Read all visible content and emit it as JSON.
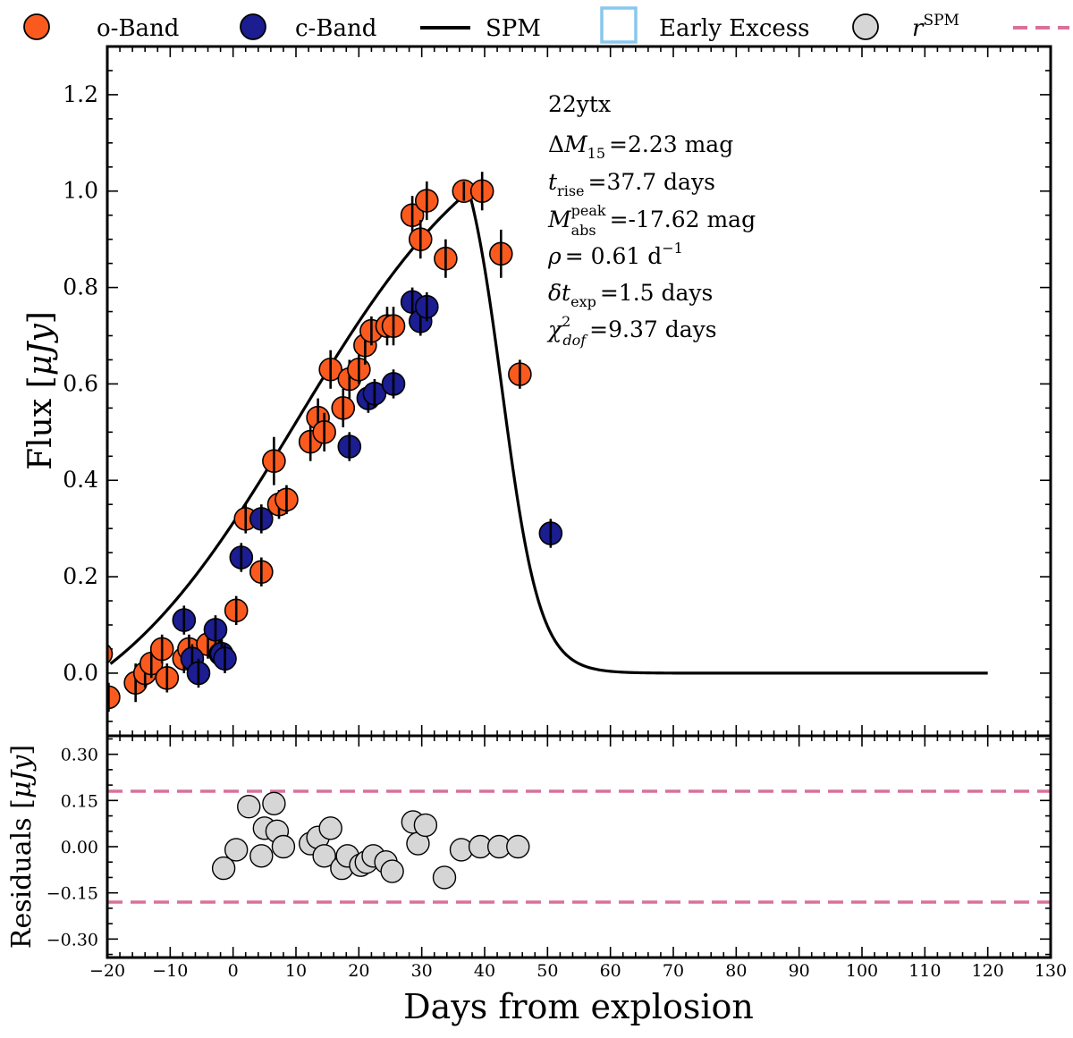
{
  "legend": {
    "items": [
      {
        "label": "o-Band",
        "kind": "marker",
        "color": "#fb5a1e"
      },
      {
        "label": "c-Band",
        "kind": "marker",
        "color": "#1b1d91"
      },
      {
        "label": "SPM",
        "kind": "line",
        "color": "#000000"
      },
      {
        "label": "Early Excess",
        "kind": "box",
        "color": "#87c8ec"
      },
      {
        "label_base": "r",
        "label_sup": "SPM",
        "kind": "marker",
        "color": "#d6d6d6"
      },
      {
        "label": "",
        "kind": "dashed",
        "color": "#d9719a"
      }
    ]
  },
  "annotation": {
    "name": "22ytx",
    "dm15_value": "=2.23 mag",
    "trise_value": "=37.7 days",
    "mabs_value": "=-17.62 mag",
    "rho_value": "= 0.61 d",
    "dtexp_value": "=1.5 days",
    "chi_value": "=9.37 days"
  },
  "chart_data": [
    {
      "type": "scatter",
      "panel": "main",
      "ylabel_main": "Flux [",
      "ylabel_unit": "μJy",
      "ylabel_close": "]",
      "xlim": [
        -20,
        130
      ],
      "ylim": [
        -0.13,
        1.3
      ],
      "yticks": [
        0.0,
        0.2,
        0.4,
        0.6,
        0.8,
        1.0,
        1.2
      ],
      "ytick_labels": [
        "0.0",
        "0.2",
        "0.4",
        "0.6",
        "0.8",
        "1.0",
        "1.2"
      ],
      "series": [
        {
          "name": "o-Band",
          "color": "#fb5a1e",
          "points": [
            {
              "x": -21.0,
              "y": 0.04,
              "err": 0.03
            },
            {
              "x": -19.8,
              "y": -0.05,
              "err": 0.03
            },
            {
              "x": -15.5,
              "y": -0.02,
              "err": 0.04
            },
            {
              "x": -14.0,
              "y": 0.0,
              "err": 0.03
            },
            {
              "x": -13.0,
              "y": 0.02,
              "err": 0.03
            },
            {
              "x": -11.3,
              "y": 0.05,
              "err": 0.03
            },
            {
              "x": -10.5,
              "y": -0.01,
              "err": 0.03
            },
            {
              "x": -7.8,
              "y": 0.03,
              "err": 0.03
            },
            {
              "x": -7.0,
              "y": 0.05,
              "err": 0.03
            },
            {
              "x": -4.0,
              "y": 0.06,
              "err": 0.03
            },
            {
              "x": -2.0,
              "y": 0.04,
              "err": 0.03
            },
            {
              "x": 0.5,
              "y": 0.13,
              "err": 0.03
            },
            {
              "x": 2.0,
              "y": 0.32,
              "err": 0.03
            },
            {
              "x": 4.5,
              "y": 0.21,
              "err": 0.03
            },
            {
              "x": 6.5,
              "y": 0.44,
              "err": 0.05
            },
            {
              "x": 7.3,
              "y": 0.35,
              "err": 0.03
            },
            {
              "x": 8.5,
              "y": 0.36,
              "err": 0.03
            },
            {
              "x": 12.3,
              "y": 0.48,
              "err": 0.04
            },
            {
              "x": 13.5,
              "y": 0.53,
              "err": 0.04
            },
            {
              "x": 14.5,
              "y": 0.5,
              "err": 0.04
            },
            {
              "x": 15.5,
              "y": 0.63,
              "err": 0.04
            },
            {
              "x": 17.5,
              "y": 0.55,
              "err": 0.04
            },
            {
              "x": 18.5,
              "y": 0.61,
              "err": 0.04
            },
            {
              "x": 20.0,
              "y": 0.63,
              "err": 0.03
            },
            {
              "x": 21.0,
              "y": 0.68,
              "err": 0.04
            },
            {
              "x": 22.0,
              "y": 0.71,
              "err": 0.03
            },
            {
              "x": 24.5,
              "y": 0.72,
              "err": 0.04
            },
            {
              "x": 25.5,
              "y": 0.72,
              "err": 0.04
            },
            {
              "x": 28.5,
              "y": 0.95,
              "err": 0.04
            },
            {
              "x": 29.8,
              "y": 0.9,
              "err": 0.04
            },
            {
              "x": 30.8,
              "y": 0.98,
              "err": 0.04
            },
            {
              "x": 33.8,
              "y": 0.86,
              "err": 0.04
            },
            {
              "x": 36.7,
              "y": 1.0,
              "err": 0.02
            },
            {
              "x": 39.6,
              "y": 1.0,
              "err": 0.04
            },
            {
              "x": 42.6,
              "y": 0.87,
              "err": 0.05
            },
            {
              "x": 45.6,
              "y": 0.62,
              "err": 0.03
            }
          ]
        },
        {
          "name": "c-Band",
          "color": "#1b1d91",
          "points": [
            {
              "x": -7.8,
              "y": 0.11,
              "err": 0.03
            },
            {
              "x": -6.5,
              "y": 0.03,
              "err": 0.03
            },
            {
              "x": -5.5,
              "y": 0.0,
              "err": 0.03
            },
            {
              "x": -2.8,
              "y": 0.09,
              "err": 0.03
            },
            {
              "x": -1.8,
              "y": 0.04,
              "err": 0.03
            },
            {
              "x": -1.3,
              "y": 0.03,
              "err": 0.03
            },
            {
              "x": 1.3,
              "y": 0.24,
              "err": 0.03
            },
            {
              "x": 4.5,
              "y": 0.32,
              "err": 0.03
            },
            {
              "x": 18.5,
              "y": 0.47,
              "err": 0.03
            },
            {
              "x": 21.5,
              "y": 0.57,
              "err": 0.03
            },
            {
              "x": 22.5,
              "y": 0.58,
              "err": 0.03
            },
            {
              "x": 25.5,
              "y": 0.6,
              "err": 0.03
            },
            {
              "x": 28.5,
              "y": 0.77,
              "err": 0.03
            },
            {
              "x": 29.8,
              "y": 0.73,
              "err": 0.03
            },
            {
              "x": 30.8,
              "y": 0.76,
              "err": 0.03
            },
            {
              "x": 50.5,
              "y": 0.29,
              "err": 0.03
            }
          ]
        },
        {
          "name": "SPM",
          "type": "line",
          "color": "#000000",
          "model": {
            "t_peak": 37.5,
            "x_start": -19.5,
            "x_end": 120,
            "rise_tau": 16,
            "rise_center": 10,
            "decline_c1": 42.8,
            "decline_w": 3.0
          }
        }
      ]
    },
    {
      "type": "scatter",
      "panel": "residuals",
      "ylabel": "Residuals [",
      "ylabel_unit": "μJy",
      "ylabel_close": "]",
      "xlabel": "Days from explosion",
      "xlim": [
        -20,
        130
      ],
      "ylim": [
        -0.36,
        0.36
      ],
      "xticks": [
        -20,
        -10,
        0,
        10,
        20,
        30,
        40,
        50,
        60,
        70,
        80,
        90,
        100,
        110,
        120,
        130
      ],
      "xtick_labels": [
        "−20",
        "−10",
        "0",
        "10",
        "20",
        "30",
        "40",
        "50",
        "60",
        "70",
        "80",
        "90",
        "100",
        "110",
        "120",
        "130"
      ],
      "yticks": [
        -0.3,
        -0.15,
        0.0,
        0.15,
        0.3
      ],
      "ytick_labels": [
        "−0.30",
        "−0.15",
        "0.00",
        "0.15",
        "0.30"
      ],
      "threshold": 0.18,
      "series": [
        {
          "color": "#d6d6d6",
          "points": [
            {
              "x": -1.5,
              "y": -0.07
            },
            {
              "x": 0.5,
              "y": -0.01
            },
            {
              "x": 2.5,
              "y": 0.13
            },
            {
              "x": 4.5,
              "y": -0.03
            },
            {
              "x": 5.0,
              "y": 0.06
            },
            {
              "x": 6.5,
              "y": 0.14
            },
            {
              "x": 7.0,
              "y": 0.05
            },
            {
              "x": 8.0,
              "y": 0.0
            },
            {
              "x": 12.3,
              "y": 0.01
            },
            {
              "x": 13.5,
              "y": 0.03
            },
            {
              "x": 14.5,
              "y": -0.03
            },
            {
              "x": 15.5,
              "y": 0.06
            },
            {
              "x": 17.3,
              "y": -0.07
            },
            {
              "x": 18.2,
              "y": -0.03
            },
            {
              "x": 20.3,
              "y": -0.06
            },
            {
              "x": 21.2,
              "y": -0.05
            },
            {
              "x": 22.3,
              "y": -0.03
            },
            {
              "x": 24.3,
              "y": -0.05
            },
            {
              "x": 25.3,
              "y": -0.08
            },
            {
              "x": 28.6,
              "y": 0.08
            },
            {
              "x": 29.4,
              "y": 0.01
            },
            {
              "x": 30.6,
              "y": 0.07
            },
            {
              "x": 33.6,
              "y": -0.1
            },
            {
              "x": 36.3,
              "y": -0.01
            },
            {
              "x": 39.3,
              "y": 0.0
            },
            {
              "x": 42.3,
              "y": 0.0
            },
            {
              "x": 45.3,
              "y": 0.0
            }
          ]
        }
      ]
    }
  ]
}
